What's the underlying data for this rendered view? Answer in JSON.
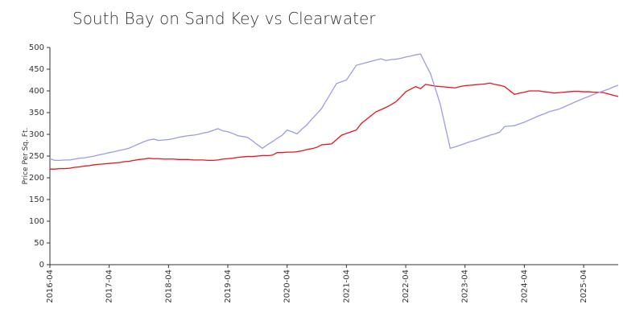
{
  "chart_data": {
    "type": "line",
    "title": "South Bay on Sand Key vs Clearwater",
    "y_label": "Price Per Sq. Ft.",
    "categories": [
      "2016-04",
      null,
      null,
      null,
      null,
      null,
      null,
      null,
      null,
      null,
      null,
      null,
      "2017-04",
      null,
      null,
      null,
      null,
      null,
      null,
      null,
      null,
      null,
      null,
      null,
      "2018-04",
      null,
      null,
      null,
      null,
      null,
      null,
      null,
      null,
      null,
      null,
      null,
      "2019-04",
      null,
      null,
      null,
      null,
      null,
      null,
      null,
      null,
      null,
      null,
      null,
      "2020-04",
      null,
      null,
      null,
      null,
      null,
      null,
      null,
      null,
      null,
      null,
      null,
      "2021-04",
      null,
      null,
      null,
      null,
      null,
      null,
      null,
      null,
      null,
      null,
      null,
      "2022-04",
      null,
      null,
      null,
      null,
      null,
      null,
      null,
      null,
      null,
      null,
      null,
      "2023-04",
      null,
      null,
      null,
      null,
      null,
      null,
      null,
      null,
      null,
      null,
      null,
      "2024-04",
      null,
      null,
      null,
      null,
      null,
      null,
      null,
      null,
      null,
      null,
      null,
      "2025-04",
      null,
      null,
      null,
      null,
      null,
      null,
      null
    ],
    "series": [
      {
        "color": "#e8141e",
        "values": [
          220,
          220,
          221,
          221,
          222,
          224,
          225,
          227,
          228,
          230,
          231,
          232,
          233,
          234,
          235,
          237,
          238,
          240,
          242,
          243,
          245,
          244,
          244,
          243,
          243,
          243,
          242,
          242,
          242,
          241,
          241,
          241,
          240,
          240,
          241,
          243,
          244,
          245,
          247,
          248,
          249,
          249,
          250,
          251,
          251,
          252,
          258,
          258,
          259,
          259,
          260,
          262,
          265,
          267,
          270,
          276,
          277,
          278,
          288,
          298,
          302,
          306,
          310,
          325,
          334,
          343,
          352,
          357,
          362,
          368,
          375,
          386,
          398,
          404,
          410,
          405,
          415,
          413,
          411,
          410,
          409,
          408,
          407,
          410,
          412,
          413,
          414,
          415,
          416,
          418,
          415,
          413,
          410,
          401,
          392,
          395,
          397,
          400,
          400,
          400,
          398,
          397,
          395,
          396,
          397,
          398,
          399,
          399,
          398,
          398,
          397,
          397,
          396,
          393,
          390,
          387
        ]
      },
      {
        "color": "#9b9be8",
        "values": [
          244,
          240,
          240,
          241,
          241,
          243,
          245,
          246,
          248,
          250,
          253,
          255,
          258,
          260,
          263,
          265,
          268,
          273,
          278,
          283,
          287,
          289,
          286,
          287,
          288,
          290,
          293,
          295,
          297,
          298,
          300,
          303,
          305,
          309,
          313,
          308,
          306,
          302,
          297,
          295,
          293,
          285,
          276,
          268,
          276,
          283,
          291,
          298,
          310,
          306,
          301,
          312,
          322,
          335,
          347,
          360,
          379,
          398,
          417,
          421,
          425,
          442,
          459,
          462,
          465,
          468,
          471,
          474,
          470,
          472,
          473,
          475,
          478,
          480,
          483,
          485,
          462,
          440,
          405,
          369,
          318,
          268,
          271,
          275,
          279,
          283,
          286,
          290,
          294,
          298,
          301,
          305,
          318,
          319,
          320,
          324,
          328,
          333,
          338,
          343,
          347,
          352,
          355,
          358,
          363,
          368,
          373,
          378,
          383,
          387,
          392,
          396,
          400,
          404,
          409,
          413
        ]
      }
    ],
    "ylim": [
      0,
      500
    ],
    "yticks": [
      0,
      50,
      100,
      150,
      200,
      250,
      300,
      350,
      400,
      450,
      500
    ],
    "grid": false
  }
}
